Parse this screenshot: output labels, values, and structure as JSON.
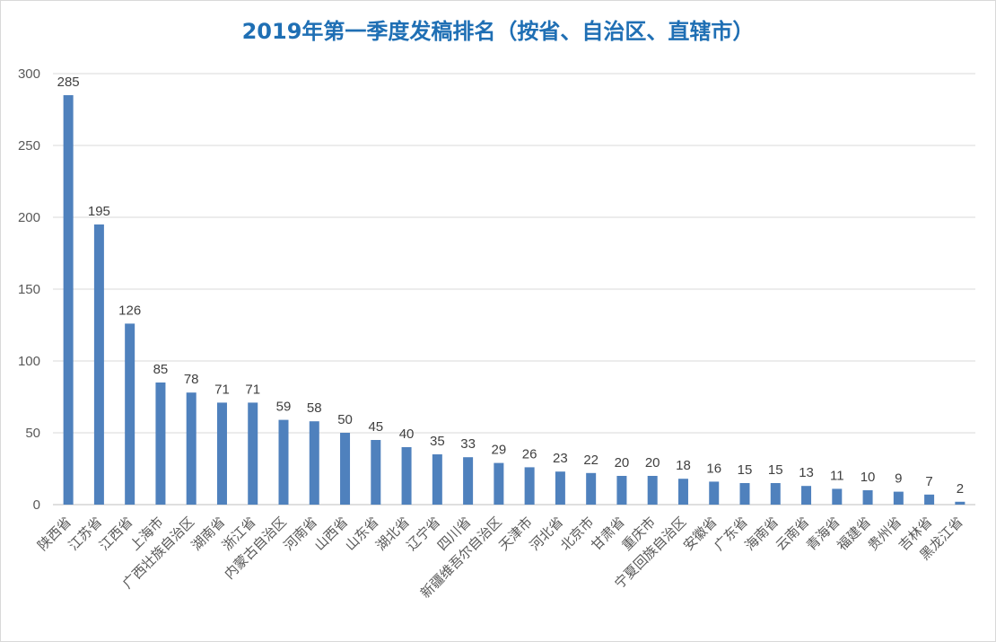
{
  "chart_data": {
    "type": "bar",
    "title": "2019年第一季度发稿排名（按省、自治区、直辖市）",
    "xlabel": "",
    "ylabel": "",
    "ylim": [
      0,
      300
    ],
    "yticks": [
      0,
      50,
      100,
      150,
      200,
      250,
      300
    ],
    "grid": true,
    "bar_color": "#4f81bd",
    "categories": [
      "陕西省",
      "江苏省",
      "江西省",
      "上海市",
      "广西壮族自治区",
      "湖南省",
      "浙江省",
      "内蒙古自治区",
      "河南省",
      "山西省",
      "山东省",
      "湖北省",
      "辽宁省",
      "四川省",
      "新疆维吾尔自治区",
      "天津市",
      "河北省",
      "北京市",
      "甘肃省",
      "重庆市",
      "宁夏回族自治区",
      "安徽省",
      "广东省",
      "海南省",
      "云南省",
      "青海省",
      "福建省",
      "贵州省",
      "吉林省",
      "黑龙江省"
    ],
    "values": [
      285,
      195,
      126,
      85,
      78,
      71,
      71,
      59,
      58,
      50,
      45,
      40,
      35,
      33,
      29,
      26,
      23,
      22,
      20,
      20,
      18,
      16,
      15,
      15,
      13,
      11,
      10,
      9,
      7,
      2
    ]
  }
}
